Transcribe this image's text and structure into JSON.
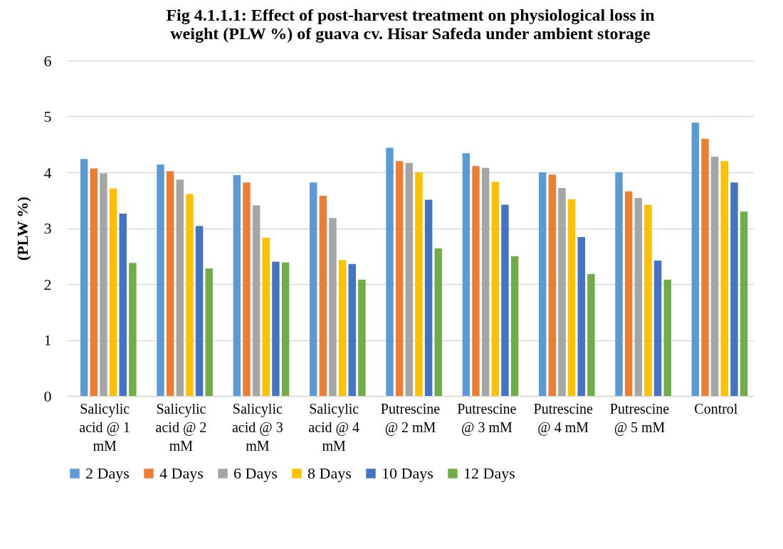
{
  "chart_data": {
    "type": "bar",
    "title": "Fig 4.1.1.1: Effect of post-harvest treatment on physiological loss in weight (PLW %) of guava cv. Hisar Safeda under ambient storage",
    "ylabel": "(PLW %)",
    "categories": [
      "Salicylic acid @ 1 mM",
      "Salicylic acid @ 2 mM",
      "Salicylic acid @ 3 mM",
      "Salicylic acid @ 4 mM",
      "Putrescine @ 2 mM",
      "Putrescine @ 3 mM",
      "Putrescine @ 4 mM",
      "Putrescine @ 5 mM",
      "Control"
    ],
    "series": [
      {
        "name": "2 Days",
        "color": "#5b9bd5",
        "values": [
          4.24,
          4.14,
          3.95,
          3.82,
          4.44,
          4.34,
          4.0,
          4.0,
          4.89
        ]
      },
      {
        "name": "4 Days",
        "color": "#ed7d31",
        "values": [
          4.07,
          4.02,
          3.82,
          3.58,
          4.2,
          4.11,
          3.96,
          3.66,
          4.6
        ]
      },
      {
        "name": "6 Days",
        "color": "#a5a5a5",
        "values": [
          3.98,
          3.87,
          3.41,
          3.18,
          4.17,
          4.08,
          3.72,
          3.54,
          4.28
        ]
      },
      {
        "name": "8 Days",
        "color": "#ffc000",
        "values": [
          3.71,
          3.61,
          2.83,
          2.43,
          4.0,
          3.83,
          3.52,
          3.42,
          4.2
        ]
      },
      {
        "name": "10 Days",
        "color": "#4472c4",
        "values": [
          3.26,
          3.04,
          2.4,
          2.36,
          3.51,
          3.42,
          2.84,
          2.42,
          3.82
        ]
      },
      {
        "name": "12 Days",
        "color": "#70ad47",
        "values": [
          2.38,
          2.28,
          2.39,
          2.08,
          2.64,
          2.5,
          2.18,
          2.08,
          3.3
        ]
      }
    ],
    "ylim": [
      0,
      6
    ],
    "yticks": [
      0,
      1,
      2,
      3,
      4,
      5,
      6
    ],
    "grid": "y",
    "legend": "bottom"
  }
}
